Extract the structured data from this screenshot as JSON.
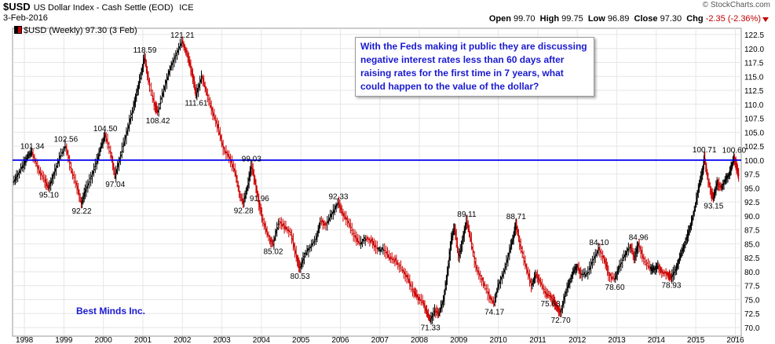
{
  "header": {
    "symbol": "$USD",
    "description": "US Dollar Index - Cash Settle (EOD)",
    "exchange": "ICE",
    "date": "3-Feb-2016",
    "brand": "© StockCharts.com",
    "open_label": "Open",
    "open": "99.70",
    "high_label": "High",
    "high": "99.75",
    "low_label": "Low",
    "low": "96.89",
    "close_label": "Close",
    "close": "97.30",
    "chg_label": "Chg",
    "chg": "-2.35 (-2.36%)"
  },
  "legend_text": "$USD (Weekly) 97.30 (3 Feb)",
  "annotation": "With the Feds making it public they are discussing negative interest rates less than 60 days after raising rates for the first time in 7 years, what could happen to the value of the dollar?",
  "watermark": "Best Minds Inc.",
  "colors": {
    "up": "#000000",
    "down": "#cc0000",
    "reference_line": "#0000ee",
    "annotation_text": "#1a1ad0",
    "grid": "#e6e6e6"
  },
  "chart_data": {
    "type": "line",
    "title": "$USD (Weekly) 97.30 (3 Feb)",
    "xlabel": "",
    "ylabel": "",
    "ylim": [
      70.0,
      122.5
    ],
    "xlim": [
      1997.7,
      2016.15
    ],
    "y_ticks": [
      "70.0",
      "72.5",
      "75.0",
      "77.5",
      "80.0",
      "82.5",
      "85.0",
      "87.5",
      "90.0",
      "92.5",
      "95.0",
      "97.5",
      "100.0",
      "102.5",
      "105.0",
      "107.5",
      "110.0",
      "112.5",
      "115.0",
      "117.5",
      "120.0",
      "122.5"
    ],
    "x_ticks": [
      "1998",
      "1999",
      "2000",
      "2001",
      "2002",
      "2003",
      "2004",
      "2005",
      "2006",
      "2007",
      "2008",
      "2009",
      "2010",
      "2011",
      "2012",
      "2013",
      "2014",
      "2015",
      "2016"
    ],
    "reference_line": 100.0,
    "grid": true,
    "series": [
      {
        "points": [
          [
            1997.72,
            96.0
          ],
          [
            1997.85,
            97.5
          ],
          [
            1998.0,
            99.5
          ],
          [
            1998.1,
            100.8
          ],
          [
            1998.2,
            101.34
          ],
          [
            1998.35,
            98.5
          ],
          [
            1998.5,
            96.5
          ],
          [
            1998.62,
            95.1
          ],
          [
            1998.75,
            97.5
          ],
          [
            1998.9,
            100.5
          ],
          [
            1999.05,
            102.56
          ],
          [
            1999.2,
            98.0
          ],
          [
            1999.35,
            95.0
          ],
          [
            1999.45,
            92.22
          ],
          [
            1999.55,
            94.5
          ],
          [
            1999.7,
            97.0
          ],
          [
            1999.85,
            100.0
          ],
          [
            1999.95,
            102.5
          ],
          [
            2000.05,
            104.5
          ],
          [
            2000.2,
            101.0
          ],
          [
            2000.3,
            97.04
          ],
          [
            2000.45,
            101.0
          ],
          [
            2000.6,
            105.0
          ],
          [
            2000.75,
            109.0
          ],
          [
            2000.85,
            112.0
          ],
          [
            2000.95,
            115.0
          ],
          [
            2001.05,
            118.59
          ],
          [
            2001.15,
            114.0
          ],
          [
            2001.3,
            110.0
          ],
          [
            2001.38,
            108.42
          ],
          [
            2001.55,
            113.0
          ],
          [
            2001.7,
            116.5
          ],
          [
            2001.85,
            119.0
          ],
          [
            2002.0,
            121.21
          ],
          [
            2002.1,
            119.5
          ],
          [
            2002.2,
            117.0
          ],
          [
            2002.3,
            114.0
          ],
          [
            2002.35,
            111.61
          ],
          [
            2002.5,
            115.0
          ],
          [
            2002.62,
            112.0
          ],
          [
            2002.75,
            109.0
          ],
          [
            2002.9,
            106.0
          ],
          [
            2003.05,
            102.0
          ],
          [
            2003.2,
            100.5
          ],
          [
            2003.35,
            97.5
          ],
          [
            2003.45,
            94.0
          ],
          [
            2003.55,
            92.28
          ],
          [
            2003.65,
            95.0
          ],
          [
            2003.75,
            99.03
          ],
          [
            2003.85,
            96.0
          ],
          [
            2003.95,
            91.96
          ],
          [
            2004.05,
            89.0
          ],
          [
            2004.2,
            86.0
          ],
          [
            2004.3,
            85.02
          ],
          [
            2004.45,
            89.0
          ],
          [
            2004.6,
            88.0
          ],
          [
            2004.75,
            87.0
          ],
          [
            2004.9,
            82.5
          ],
          [
            2004.98,
            80.53
          ],
          [
            2005.1,
            83.0
          ],
          [
            2005.25,
            84.5
          ],
          [
            2005.4,
            86.0
          ],
          [
            2005.5,
            89.0
          ],
          [
            2005.65,
            88.5
          ],
          [
            2005.8,
            90.5
          ],
          [
            2005.95,
            92.33
          ],
          [
            2006.05,
            90.5
          ],
          [
            2006.2,
            89.0
          ],
          [
            2006.35,
            86.5
          ],
          [
            2006.5,
            85.0
          ],
          [
            2006.65,
            86.0
          ],
          [
            2006.8,
            85.5
          ],
          [
            2006.95,
            84.0
          ],
          [
            2007.1,
            84.0
          ],
          [
            2007.25,
            82.5
          ],
          [
            2007.4,
            82.0
          ],
          [
            2007.55,
            80.5
          ],
          [
            2007.7,
            79.0
          ],
          [
            2007.85,
            76.5
          ],
          [
            2007.95,
            75.5
          ],
          [
            2008.1,
            74.5
          ],
          [
            2008.2,
            72.5
          ],
          [
            2008.28,
            71.33
          ],
          [
            2008.4,
            73.0
          ],
          [
            2008.5,
            72.5
          ],
          [
            2008.62,
            75.0
          ],
          [
            2008.72,
            80.0
          ],
          [
            2008.82,
            86.0
          ],
          [
            2008.9,
            88.0
          ],
          [
            2009.0,
            82.5
          ],
          [
            2009.1,
            85.5
          ],
          [
            2009.2,
            89.11
          ],
          [
            2009.3,
            86.0
          ],
          [
            2009.45,
            80.5
          ],
          [
            2009.6,
            78.5
          ],
          [
            2009.75,
            76.0
          ],
          [
            2009.9,
            74.17
          ],
          [
            2010.0,
            77.5
          ],
          [
            2010.15,
            80.0
          ],
          [
            2010.3,
            84.0
          ],
          [
            2010.4,
            86.5
          ],
          [
            2010.45,
            88.71
          ],
          [
            2010.55,
            85.0
          ],
          [
            2010.7,
            81.0
          ],
          [
            2010.85,
            77.5
          ],
          [
            2010.95,
            79.5
          ],
          [
            2011.05,
            78.5
          ],
          [
            2011.2,
            76.0
          ],
          [
            2011.32,
            75.63
          ],
          [
            2011.42,
            74.5
          ],
          [
            2011.5,
            73.5
          ],
          [
            2011.58,
            72.7
          ],
          [
            2011.7,
            76.0
          ],
          [
            2011.8,
            78.0
          ],
          [
            2011.9,
            80.0
          ],
          [
            2012.0,
            81.0
          ],
          [
            2012.1,
            79.5
          ],
          [
            2012.25,
            79.5
          ],
          [
            2012.4,
            82.0
          ],
          [
            2012.55,
            84.1
          ],
          [
            2012.7,
            82.0
          ],
          [
            2012.8,
            79.5
          ],
          [
            2012.95,
            78.6
          ],
          [
            2013.05,
            80.5
          ],
          [
            2013.2,
            83.0
          ],
          [
            2013.35,
            84.5
          ],
          [
            2013.45,
            82.5
          ],
          [
            2013.55,
            84.96
          ],
          [
            2013.7,
            82.0
          ],
          [
            2013.85,
            80.5
          ],
          [
            2013.95,
            80.5
          ],
          [
            2014.05,
            81.0
          ],
          [
            2014.15,
            80.0
          ],
          [
            2014.3,
            79.5
          ],
          [
            2014.38,
            78.93
          ],
          [
            2014.5,
            80.5
          ],
          [
            2014.6,
            82.5
          ],
          [
            2014.7,
            84.5
          ],
          [
            2014.8,
            86.5
          ],
          [
            2014.9,
            89.0
          ],
          [
            2015.0,
            92.0
          ],
          [
            2015.1,
            96.0
          ],
          [
            2015.18,
            98.0
          ],
          [
            2015.22,
            100.71
          ],
          [
            2015.3,
            97.0
          ],
          [
            2015.4,
            94.0
          ],
          [
            2015.45,
            93.15
          ],
          [
            2015.55,
            96.0
          ],
          [
            2015.65,
            95.0
          ],
          [
            2015.75,
            96.5
          ],
          [
            2015.85,
            97.5
          ],
          [
            2015.92,
            99.0
          ],
          [
            2015.97,
            100.6
          ],
          [
            2016.04,
            98.5
          ],
          [
            2016.09,
            97.3
          ]
        ]
      }
    ],
    "annotations": [
      {
        "x": 1998.2,
        "y": 101.34,
        "label": "101.34",
        "pos": "above"
      },
      {
        "x": 1998.62,
        "y": 95.1,
        "label": "95.10",
        "pos": "below"
      },
      {
        "x": 1999.05,
        "y": 102.56,
        "label": "102.56",
        "pos": "above"
      },
      {
        "x": 1999.45,
        "y": 92.22,
        "label": "92.22",
        "pos": "below"
      },
      {
        "x": 2000.05,
        "y": 104.5,
        "label": "104.50",
        "pos": "above"
      },
      {
        "x": 2000.3,
        "y": 97.04,
        "label": "97.04",
        "pos": "below"
      },
      {
        "x": 2001.05,
        "y": 118.59,
        "label": "118.59",
        "pos": "above"
      },
      {
        "x": 2001.38,
        "y": 108.42,
        "label": "108.42",
        "pos": "below"
      },
      {
        "x": 2002.0,
        "y": 121.21,
        "label": "121.21",
        "pos": "above"
      },
      {
        "x": 2002.35,
        "y": 111.61,
        "label": "111.61",
        "pos": "below"
      },
      {
        "x": 2003.75,
        "y": 99.03,
        "label": "99.03",
        "pos": "above"
      },
      {
        "x": 2003.55,
        "y": 92.28,
        "label": "92.28",
        "pos": "below"
      },
      {
        "x": 2003.95,
        "y": 91.96,
        "label": "91.96",
        "pos": "above"
      },
      {
        "x": 2004.3,
        "y": 85.02,
        "label": "85.02",
        "pos": "below"
      },
      {
        "x": 2004.98,
        "y": 80.53,
        "label": "80.53",
        "pos": "below"
      },
      {
        "x": 2005.95,
        "y": 92.33,
        "label": "92.33",
        "pos": "above"
      },
      {
        "x": 2008.28,
        "y": 71.33,
        "label": "71.33",
        "pos": "below"
      },
      {
        "x": 2009.2,
        "y": 89.11,
        "label": "89.11",
        "pos": "above"
      },
      {
        "x": 2009.9,
        "y": 74.17,
        "label": "74.17",
        "pos": "below"
      },
      {
        "x": 2010.45,
        "y": 88.71,
        "label": "88.71",
        "pos": "above"
      },
      {
        "x": 2011.32,
        "y": 75.63,
        "label": "75.63",
        "pos": "below"
      },
      {
        "x": 2011.58,
        "y": 72.7,
        "label": "72.70",
        "pos": "below"
      },
      {
        "x": 2012.55,
        "y": 84.1,
        "label": "84.10",
        "pos": "above"
      },
      {
        "x": 2012.95,
        "y": 78.6,
        "label": "78.60",
        "pos": "below"
      },
      {
        "x": 2013.55,
        "y": 84.96,
        "label": "84.96",
        "pos": "above"
      },
      {
        "x": 2014.38,
        "y": 78.93,
        "label": "78.93",
        "pos": "below"
      },
      {
        "x": 2015.22,
        "y": 100.71,
        "label": "100.71",
        "pos": "above"
      },
      {
        "x": 2015.45,
        "y": 93.15,
        "label": "93.15",
        "pos": "below"
      },
      {
        "x": 2015.97,
        "y": 100.6,
        "label": "100.60",
        "pos": "above"
      }
    ]
  }
}
